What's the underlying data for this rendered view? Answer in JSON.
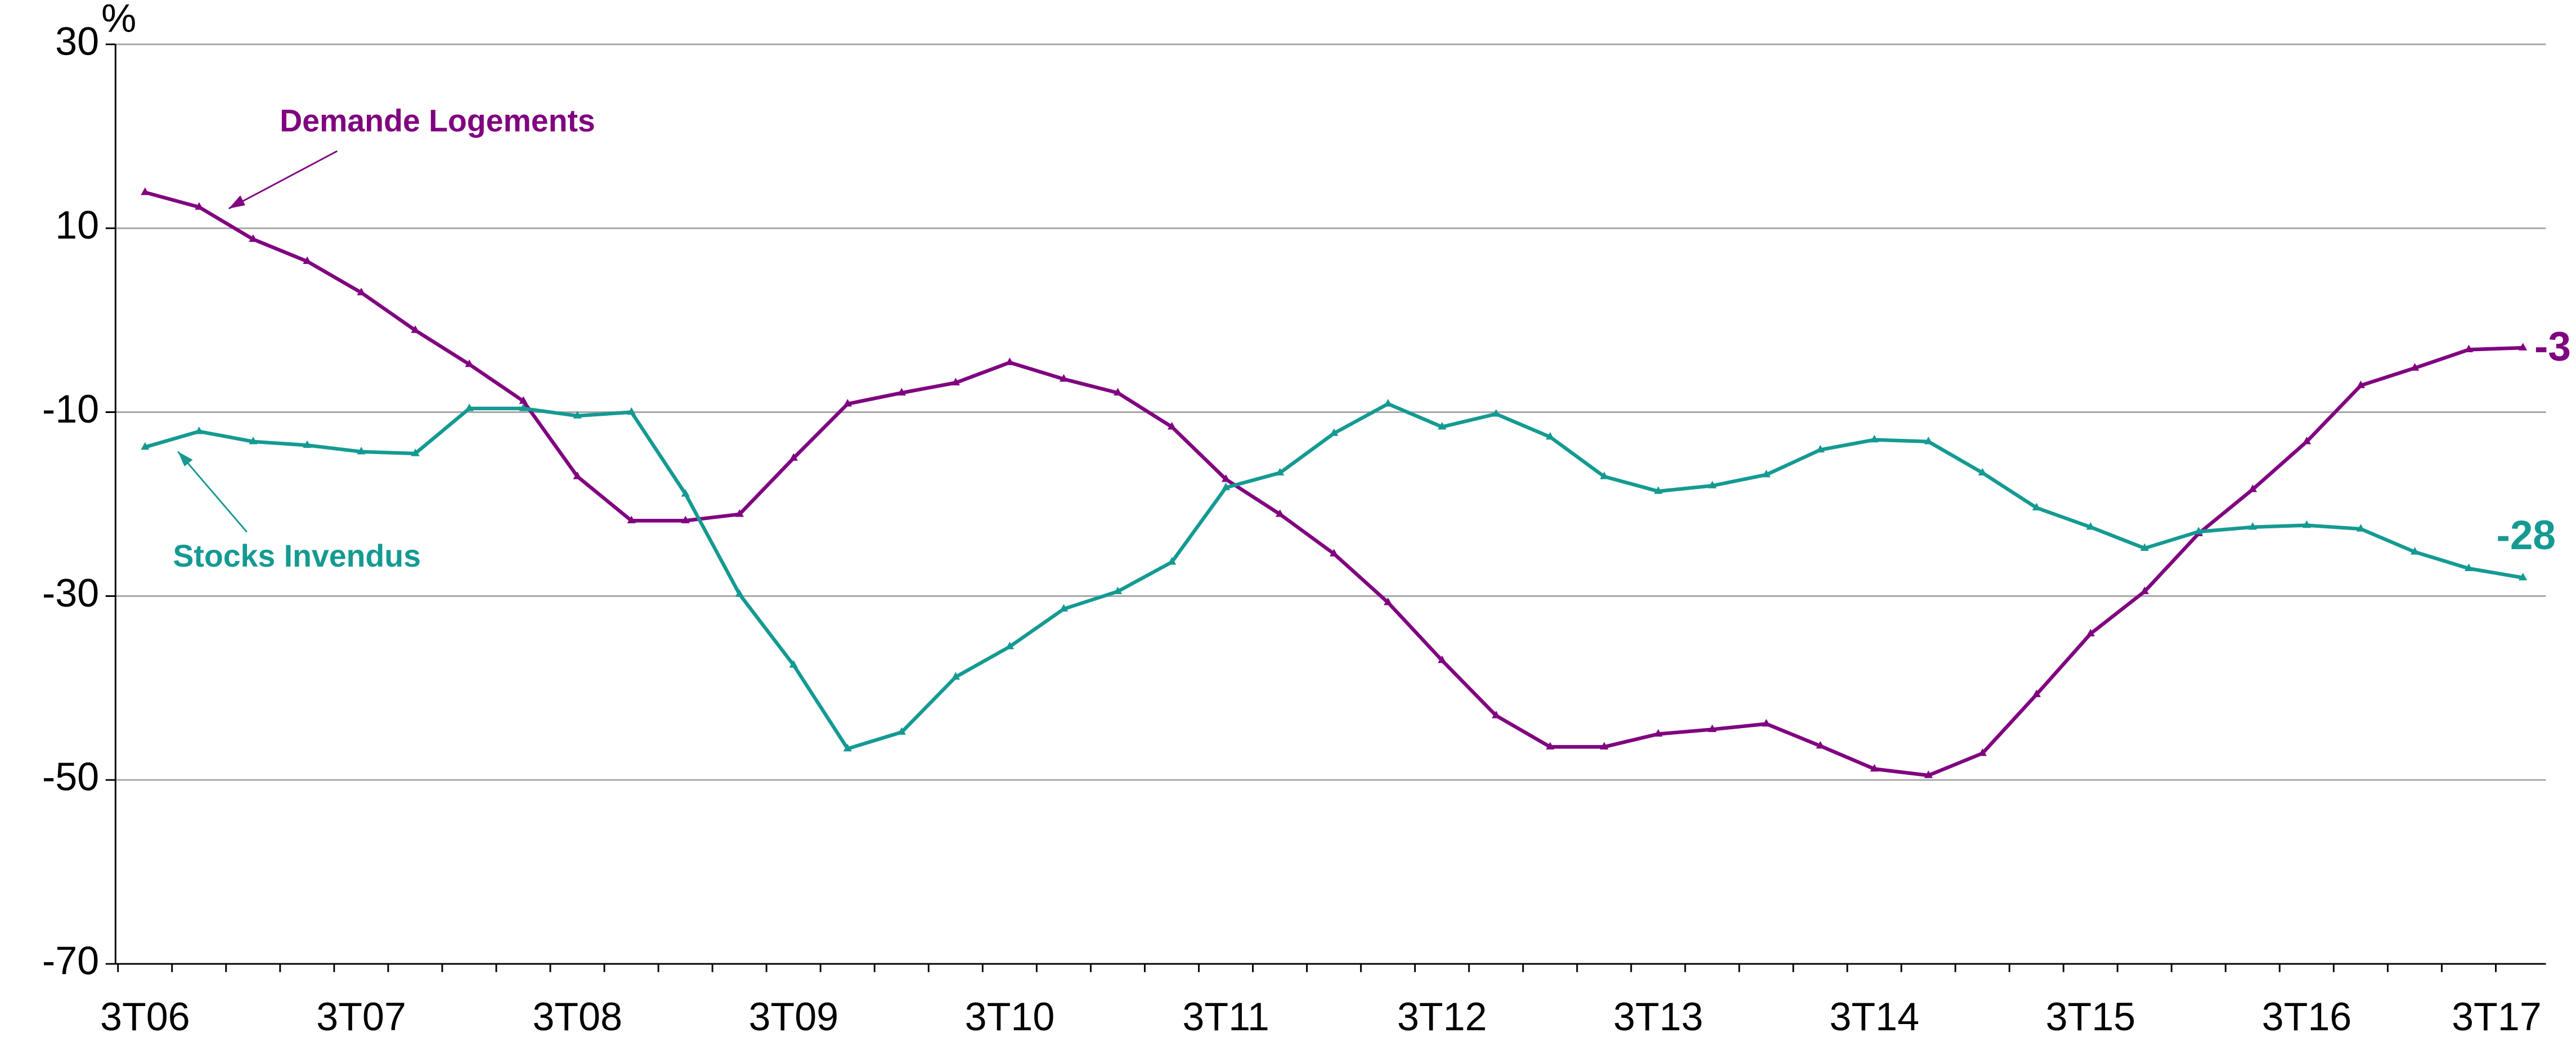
{
  "chart_data": {
    "type": "line",
    "y_unit_label": "%",
    "categories": [
      "3T06",
      null,
      null,
      null,
      "3T07",
      null,
      null,
      null,
      "3T08",
      null,
      null,
      null,
      "3T09",
      null,
      null,
      null,
      "3T10",
      null,
      null,
      null,
      "3T11",
      null,
      null,
      null,
      "3T12",
      null,
      null,
      null,
      "3T13",
      null,
      null,
      null,
      "3T14",
      null,
      null,
      null,
      "3T15",
      null,
      null,
      null,
      "3T16",
      null,
      null,
      null,
      "3T17"
    ],
    "ylim": [
      -70,
      30
    ],
    "yticks": [
      -70,
      -50,
      -30,
      -10,
      10,
      30
    ],
    "grid": true,
    "series": [
      {
        "name": "Demande Logements",
        "color": "#800080",
        "values": [
          13.9,
          12.3,
          8.8,
          6.4,
          3.0,
          -1.1,
          -4.8,
          -8.8,
          -17,
          -21.8,
          -21.8,
          -21.1,
          -15,
          -9.1,
          -7.9,
          -6.8,
          -4.6,
          -6.4,
          -7.9,
          -11.6,
          -17.3,
          -21.1,
          -25.4,
          -30.7,
          -37,
          -43,
          -46.4,
          -46.4,
          -45,
          -44.5,
          -43.9,
          -46.3,
          -48.8,
          -49.5,
          -47.1,
          -40.7,
          -34.1,
          -29.5,
          -23.2,
          -18.4,
          -13.2,
          -7.1,
          -5.2,
          -3.2,
          -3
        ]
      },
      {
        "name": "Stocks Invendus",
        "color": "#149a92",
        "values": [
          -13.8,
          -12.1,
          -13.2,
          -13.6,
          -14.3,
          -14.5,
          -9.6,
          -9.6,
          -10.4,
          -10,
          -18.9,
          -29.8,
          -37.5,
          -46.6,
          -44.8,
          -38.8,
          -35.5,
          -31.4,
          -29.5,
          -26.3,
          -18.2,
          -16.6,
          -12.3,
          -9.1,
          -11.6,
          -10.2,
          -12.7,
          -17,
          -18.6,
          -18,
          -16.8,
          -14.1,
          -13,
          -13.2,
          -16.6,
          -20.4,
          -22.5,
          -24.8,
          -23,
          -22.5,
          -22.3,
          -22.7,
          -25.2,
          -27,
          -28
        ]
      }
    ]
  }
}
